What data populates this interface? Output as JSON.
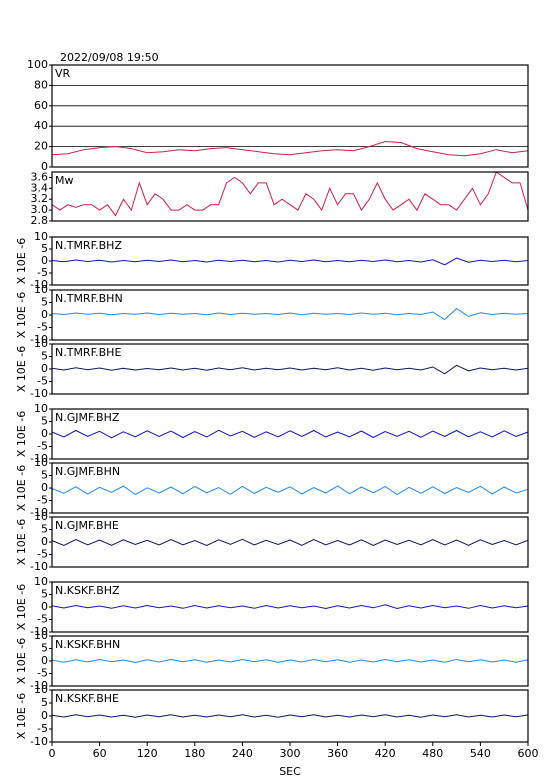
{
  "chart_data": [
    {
      "type": "line",
      "title": "2022/09/08 19:50",
      "x": [
        0,
        20,
        40,
        60,
        80,
        100,
        120,
        140,
        160,
        180,
        200,
        220,
        240,
        260,
        280,
        300,
        320,
        340,
        360,
        380,
        400,
        420,
        440,
        460,
        480,
        500,
        520,
        540,
        560,
        580,
        600
      ],
      "series": [
        {
          "name": "VR",
          "color": "#d2204c",
          "values": [
            12,
            13,
            17,
            19,
            20,
            18,
            14,
            15,
            17,
            16,
            18,
            19,
            17,
            15,
            13,
            12,
            14,
            16,
            17,
            16,
            20,
            25,
            24,
            18,
            15,
            12,
            11,
            13,
            17,
            14,
            16
          ]
        }
      ],
      "xlim": [
        0,
        600
      ],
      "ylim": [
        0,
        100
      ],
      "yticks": [
        0,
        20,
        40,
        60,
        80,
        100
      ],
      "grid": true
    },
    {
      "type": "line",
      "x": [
        0,
        10,
        20,
        30,
        40,
        50,
        60,
        70,
        80,
        90,
        100,
        110,
        120,
        130,
        140,
        150,
        160,
        170,
        180,
        190,
        200,
        210,
        220,
        230,
        240,
        250,
        260,
        270,
        280,
        290,
        300,
        310,
        320,
        330,
        340,
        350,
        360,
        370,
        380,
        390,
        400,
        410,
        420,
        430,
        440,
        450,
        460,
        470,
        480,
        490,
        500,
        510,
        520,
        530,
        540,
        550,
        560,
        570,
        580,
        590,
        600
      ],
      "series": [
        {
          "name": "Mw",
          "color": "#d2204c",
          "values": [
            3.1,
            3.0,
            3.1,
            3.05,
            3.1,
            3.1,
            3.0,
            3.1,
            2.9,
            3.2,
            3.0,
            3.5,
            3.1,
            3.3,
            3.2,
            3.0,
            3.0,
            3.1,
            3.0,
            3.0,
            3.1,
            3.1,
            3.5,
            3.6,
            3.5,
            3.3,
            3.5,
            3.5,
            3.1,
            3.2,
            3.1,
            3.0,
            3.3,
            3.2,
            3.0,
            3.4,
            3.1,
            3.3,
            3.3,
            3.0,
            3.2,
            3.5,
            3.2,
            3.0,
            3.1,
            3.2,
            3.0,
            3.3,
            3.2,
            3.1,
            3.1,
            3.0,
            3.2,
            3.4,
            3.1,
            3.3,
            3.7,
            3.6,
            3.5,
            3.5,
            3.0
          ]
        }
      ],
      "xlim": [
        0,
        600
      ],
      "ylim": [
        2.8,
        3.7
      ],
      "yticks": [
        2.8,
        {
          "value": 3,
          "label": "3.0"
        },
        3.2,
        3.4,
        3.6
      ]
    },
    {
      "type": "line",
      "ylabel": "X 10E -6",
      "x": [
        0,
        15,
        30,
        45,
        60,
        75,
        90,
        105,
        120,
        135,
        150,
        165,
        180,
        195,
        210,
        225,
        240,
        255,
        270,
        285,
        300,
        315,
        330,
        345,
        360,
        375,
        390,
        405,
        420,
        435,
        450,
        465,
        480,
        495,
        510,
        525,
        540,
        555,
        570,
        585,
        600
      ],
      "series": [
        {
          "name": "N.TMRF.BHZ",
          "color": "#1414c8",
          "values": [
            0.2,
            -0.3,
            0.4,
            -0.2,
            0.3,
            -0.4,
            0.2,
            -0.3,
            0.3,
            -0.2,
            0.4,
            -0.3,
            0.2,
            -0.4,
            0.3,
            -0.2,
            0.3,
            -0.3,
            0.2,
            -0.4,
            0.3,
            -0.2,
            0.4,
            -0.3,
            0.2,
            -0.3,
            0.3,
            -0.2,
            0.4,
            -0.3,
            0.2,
            -0.4,
            0.5,
            -1.6,
            1.2,
            -0.5,
            0.3,
            -0.2,
            0.3,
            -0.3,
            0.2
          ]
        }
      ],
      "xlim": [
        0,
        600
      ],
      "ylim": [
        -10,
        10
      ],
      "yticks": [
        -10,
        -5,
        0,
        5,
        10
      ]
    },
    {
      "type": "line",
      "ylabel": "X 10E -6",
      "x": [
        0,
        15,
        30,
        45,
        60,
        75,
        90,
        105,
        120,
        135,
        150,
        165,
        180,
        195,
        210,
        225,
        240,
        255,
        270,
        285,
        300,
        315,
        330,
        345,
        360,
        375,
        390,
        405,
        420,
        435,
        450,
        465,
        480,
        495,
        510,
        525,
        540,
        555,
        570,
        585,
        600
      ],
      "series": [
        {
          "name": "N.TMRF.BHN",
          "color": "#1e8cf0",
          "values": [
            0.6,
            0.2,
            0.8,
            0.3,
            0.7,
            0.1,
            0.6,
            0.3,
            0.8,
            0.2,
            0.7,
            0.3,
            0.6,
            0.1,
            0.8,
            0.2,
            0.7,
            0.3,
            0.6,
            0.2,
            0.8,
            0.1,
            0.7,
            0.3,
            0.6,
            0.2,
            0.8,
            0.3,
            0.7,
            0.1,
            0.6,
            0.2,
            1.2,
            -1.8,
            2.6,
            -0.6,
            0.9,
            0.2,
            0.7,
            0.3,
            0.6
          ]
        }
      ],
      "xlim": [
        0,
        600
      ],
      "ylim": [
        -10,
        10
      ],
      "yticks": [
        -10,
        -5,
        0,
        5,
        10
      ]
    },
    {
      "type": "line",
      "ylabel": "X 10E -6",
      "x": [
        0,
        15,
        30,
        45,
        60,
        75,
        90,
        105,
        120,
        135,
        150,
        165,
        180,
        195,
        210,
        225,
        240,
        255,
        270,
        285,
        300,
        315,
        330,
        345,
        360,
        375,
        390,
        405,
        420,
        435,
        450,
        465,
        480,
        495,
        510,
        525,
        540,
        555,
        570,
        585,
        600
      ],
      "series": [
        {
          "name": "N.TMRF.BHE",
          "color": "#141464",
          "values": [
            0.3,
            -0.4,
            0.5,
            -0.3,
            0.4,
            -0.5,
            0.3,
            -0.4,
            0.2,
            -0.3,
            0.4,
            -0.4,
            0.3,
            -0.5,
            0.4,
            -0.3,
            0.5,
            -0.4,
            0.3,
            -0.3,
            0.4,
            -0.4,
            0.3,
            -0.3,
            0.5,
            -0.4,
            0.3,
            -0.5,
            0.4,
            -0.3,
            0.3,
            -0.4,
            0.8,
            -1.9,
            1.5,
            -0.7,
            0.4,
            -0.3,
            0.3,
            -0.4,
            0.3
          ]
        }
      ],
      "xlim": [
        0,
        600
      ],
      "ylim": [
        -10,
        10
      ],
      "yticks": [
        -10,
        -5,
        0,
        5,
        10
      ]
    },
    {
      "type": "line",
      "ylabel": "X 10E -6",
      "x": [
        0,
        15,
        30,
        45,
        60,
        75,
        90,
        105,
        120,
        135,
        150,
        165,
        180,
        195,
        210,
        225,
        240,
        255,
        270,
        285,
        300,
        315,
        330,
        345,
        360,
        375,
        390,
        405,
        420,
        435,
        450,
        465,
        480,
        495,
        510,
        525,
        540,
        555,
        570,
        585,
        600
      ],
      "series": [
        {
          "name": "N.GJMF.BHZ",
          "color": "#1414c8",
          "values": [
            0.8,
            -1.2,
            1.4,
            -0.9,
            1.1,
            -1.5,
            0.9,
            -1.1,
            1.3,
            -1.0,
            1.2,
            -1.4,
            1.0,
            -1.2,
            1.5,
            -0.8,
            1.1,
            -1.3,
            0.9,
            -1.1,
            1.3,
            -1.0,
            1.4,
            -1.2,
            0.8,
            -1.1,
            1.2,
            -1.4,
            1.0,
            -0.9,
            1.1,
            -1.3,
            1.2,
            -1.0,
            1.4,
            -1.1,
            0.9,
            -1.2,
            1.3,
            -1.0,
            0.8
          ]
        }
      ],
      "xlim": [
        0,
        600
      ],
      "ylim": [
        -10,
        10
      ],
      "yticks": [
        -10,
        -5,
        0,
        5,
        10
      ]
    },
    {
      "type": "line",
      "ylabel": "X 10E -6",
      "x": [
        0,
        15,
        30,
        45,
        60,
        75,
        90,
        105,
        120,
        135,
        150,
        165,
        180,
        195,
        210,
        225,
        240,
        255,
        270,
        285,
        300,
        315,
        330,
        345,
        360,
        375,
        390,
        405,
        420,
        435,
        450,
        465,
        480,
        495,
        510,
        525,
        540,
        555,
        570,
        585,
        600
      ],
      "series": [
        {
          "name": "N.GJMF.BHN",
          "color": "#1e8cf0",
          "values": [
            -0.2,
            -2.1,
            0.5,
            -2.4,
            0.3,
            -1.8,
            0.8,
            -2.6,
            0.1,
            -2.0,
            0.4,
            -2.3,
            0.6,
            -1.9,
            0.2,
            -2.5,
            0.7,
            -2.2,
            0.3,
            -1.7,
            0.5,
            -2.4,
            0.2,
            -2.0,
            0.8,
            -2.3,
            0.4,
            -1.9,
            0.6,
            -2.6,
            0.3,
            -2.1,
            0.5,
            -2.2,
            0.2,
            -1.8,
            0.7,
            -2.4,
            0.4,
            -2.0,
            -0.5
          ]
        }
      ],
      "xlim": [
        0,
        600
      ],
      "ylim": [
        -10,
        10
      ],
      "yticks": [
        -10,
        -5,
        0,
        5,
        10
      ]
    },
    {
      "type": "line",
      "ylabel": "X 10E -6",
      "x": [
        0,
        15,
        30,
        45,
        60,
        75,
        90,
        105,
        120,
        135,
        150,
        165,
        180,
        195,
        210,
        225,
        240,
        255,
        270,
        285,
        300,
        315,
        330,
        345,
        360,
        375,
        390,
        405,
        420,
        435,
        450,
        465,
        480,
        495,
        510,
        525,
        540,
        555,
        570,
        585,
        600
      ],
      "series": [
        {
          "name": "N.GJMF.BHE",
          "color": "#141464",
          "values": [
            0.6,
            -1.4,
            1.0,
            -1.1,
            0.8,
            -1.3,
            0.9,
            -1.0,
            0.7,
            -1.2,
            1.0,
            -1.1,
            0.6,
            -1.4,
            0.9,
            -0.9,
            1.1,
            -1.2,
            0.7,
            -1.0,
            0.8,
            -1.3,
            1.0,
            -1.1,
            0.6,
            -1.2,
            0.9,
            -1.4,
            0.8,
            -1.0,
            0.7,
            -1.1,
            1.0,
            -1.2,
            0.8,
            -1.3,
            0.9,
            -1.0,
            0.6,
            -1.1,
            0.7
          ]
        }
      ],
      "xlim": [
        0,
        600
      ],
      "ylim": [
        -10,
        10
      ],
      "yticks": [
        -10,
        -5,
        0,
        5,
        10
      ]
    },
    {
      "type": "line",
      "ylabel": "X 10E -6",
      "x": [
        0,
        15,
        30,
        45,
        60,
        75,
        90,
        105,
        120,
        135,
        150,
        165,
        180,
        195,
        210,
        225,
        240,
        255,
        270,
        285,
        300,
        315,
        330,
        345,
        360,
        375,
        390,
        405,
        420,
        435,
        450,
        465,
        480,
        495,
        510,
        525,
        540,
        555,
        570,
        585,
        600
      ],
      "series": [
        {
          "name": "N.KSKF.BHZ",
          "color": "#1414c8",
          "values": [
            0.5,
            -0.4,
            0.6,
            -0.3,
            0.4,
            -0.5,
            0.5,
            -0.4,
            0.6,
            -0.3,
            0.4,
            -0.5,
            0.6,
            -0.4,
            0.5,
            -0.3,
            0.4,
            -0.5,
            0.6,
            -0.4,
            0.5,
            -0.3,
            0.4,
            -0.6,
            0.5,
            -0.4,
            0.6,
            -0.3,
            0.9,
            -0.6,
            0.5,
            -0.4,
            0.6,
            -0.3,
            0.4,
            -0.5,
            0.6,
            -0.4,
            0.5,
            -0.3,
            0.4
          ]
        }
      ],
      "xlim": [
        0,
        600
      ],
      "ylim": [
        -10,
        10
      ],
      "yticks": [
        -10,
        -5,
        0,
        5,
        10
      ]
    },
    {
      "type": "line",
      "ylabel": "X 10E -6",
      "x": [
        0,
        15,
        30,
        45,
        60,
        75,
        90,
        105,
        120,
        135,
        150,
        165,
        180,
        195,
        210,
        225,
        240,
        255,
        270,
        285,
        300,
        315,
        330,
        345,
        360,
        375,
        390,
        405,
        420,
        435,
        450,
        465,
        480,
        495,
        510,
        525,
        540,
        555,
        570,
        585,
        600
      ],
      "series": [
        {
          "name": "N.KSKF.BHN",
          "color": "#1e8cf0",
          "values": [
            0.4,
            -0.5,
            0.5,
            -0.4,
            0.6,
            -0.3,
            0.4,
            -0.6,
            0.5,
            -0.4,
            0.6,
            -0.3,
            0.5,
            -0.5,
            0.4,
            -0.4,
            0.6,
            -0.3,
            0.5,
            -0.5,
            0.4,
            -0.4,
            0.6,
            -0.3,
            0.5,
            -0.5,
            0.4,
            -0.4,
            0.6,
            -0.3,
            0.5,
            -0.4,
            0.4,
            -0.5,
            0.6,
            -0.3,
            0.5,
            -0.4,
            0.4,
            -0.5,
            0.5
          ]
        }
      ],
      "xlim": [
        0,
        600
      ],
      "ylim": [
        -10,
        10
      ],
      "yticks": [
        -10,
        -5,
        0,
        5,
        10
      ]
    },
    {
      "type": "line",
      "ylabel": "X 10E -6",
      "xlabel": "SEC",
      "x": [
        0,
        15,
        30,
        45,
        60,
        75,
        90,
        105,
        120,
        135,
        150,
        165,
        180,
        195,
        210,
        225,
        240,
        255,
        270,
        285,
        300,
        315,
        330,
        345,
        360,
        375,
        390,
        405,
        420,
        435,
        450,
        465,
        480,
        495,
        510,
        525,
        540,
        555,
        570,
        585,
        600
      ],
      "series": [
        {
          "name": "N.KSKF.BHE",
          "color": "#141464",
          "values": [
            0.3,
            -0.4,
            0.5,
            -0.3,
            0.4,
            -0.4,
            0.3,
            -0.5,
            0.4,
            -0.3,
            0.5,
            -0.4,
            0.3,
            -0.4,
            0.4,
            -0.3,
            0.5,
            -0.4,
            0.3,
            -0.5,
            0.4,
            -0.3,
            0.5,
            -0.4,
            0.3,
            -0.4,
            0.4,
            -0.3,
            0.5,
            -0.4,
            0.3,
            -0.5,
            0.4,
            -0.3,
            0.5,
            -0.4,
            0.3,
            -0.4,
            0.4,
            -0.3,
            0.4
          ]
        }
      ],
      "xlim": [
        0,
        600
      ],
      "ylim": [
        -10,
        10
      ],
      "yticks": [
        -10,
        -5,
        0,
        5,
        10
      ],
      "xticks": [
        0,
        60,
        120,
        180,
        240,
        300,
        360,
        420,
        480,
        540,
        600
      ]
    }
  ]
}
